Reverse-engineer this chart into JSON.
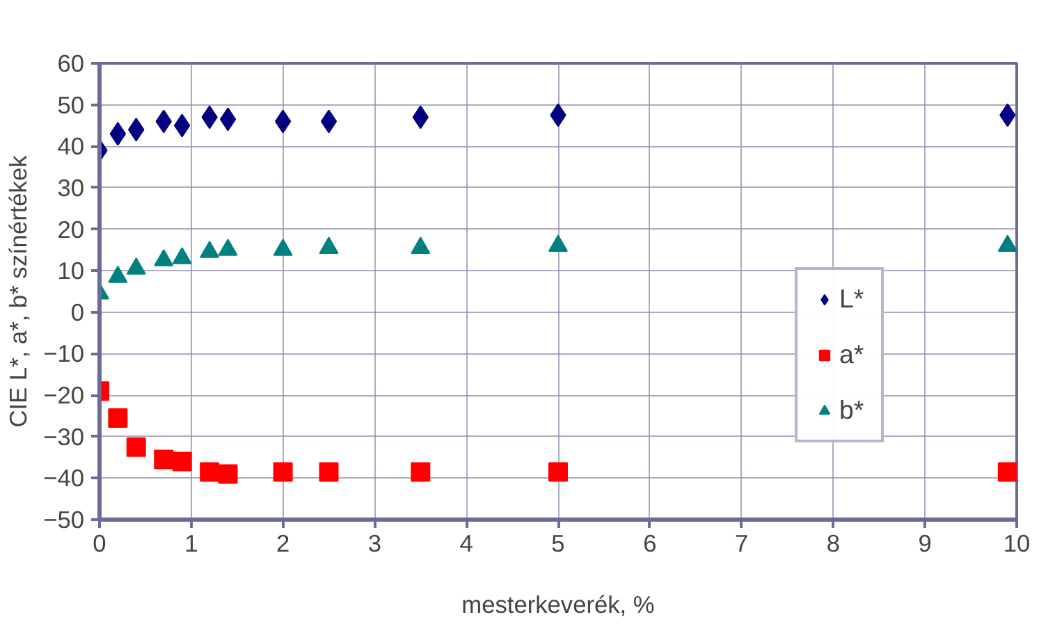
{
  "chart_data": {
    "type": "scatter",
    "xlabel": "mesterkeverék, %",
    "ylabel": "CIE L*, a*, b* színértékek",
    "x": [
      0,
      0.2,
      0.4,
      0.7,
      0.9,
      1.2,
      1.4,
      2,
      2.5,
      3.5,
      5,
      9.9
    ],
    "series": [
      {
        "name": "L*",
        "color": "#000080",
        "marker": "diamond",
        "values": [
          39,
          43,
          44,
          46,
          45,
          47,
          46.5,
          46,
          46,
          47,
          47.5,
          47.5
        ]
      },
      {
        "name": "a*",
        "color": "#ff0000",
        "marker": "square",
        "values": [
          -19,
          -25.5,
          -32.5,
          -35.5,
          -36,
          -38.5,
          -39,
          -38.5,
          -38.5,
          -38.5,
          -38.5,
          -38.5
        ]
      },
      {
        "name": "b*",
        "color": "#008080",
        "marker": "triangle",
        "values": [
          4.5,
          8.5,
          10.5,
          12.5,
          13,
          14.5,
          15,
          15,
          15.5,
          15.5,
          16,
          16
        ]
      }
    ],
    "xlim": [
      0,
      10
    ],
    "ylim": [
      -50,
      60
    ],
    "xticks": [
      0,
      1,
      2,
      3,
      4,
      5,
      6,
      7,
      8,
      9,
      10
    ],
    "yticks": [
      -50,
      -40,
      -30,
      -20,
      -10,
      0,
      10,
      20,
      30,
      40,
      50,
      60
    ],
    "grid": true,
    "legend": "right"
  }
}
